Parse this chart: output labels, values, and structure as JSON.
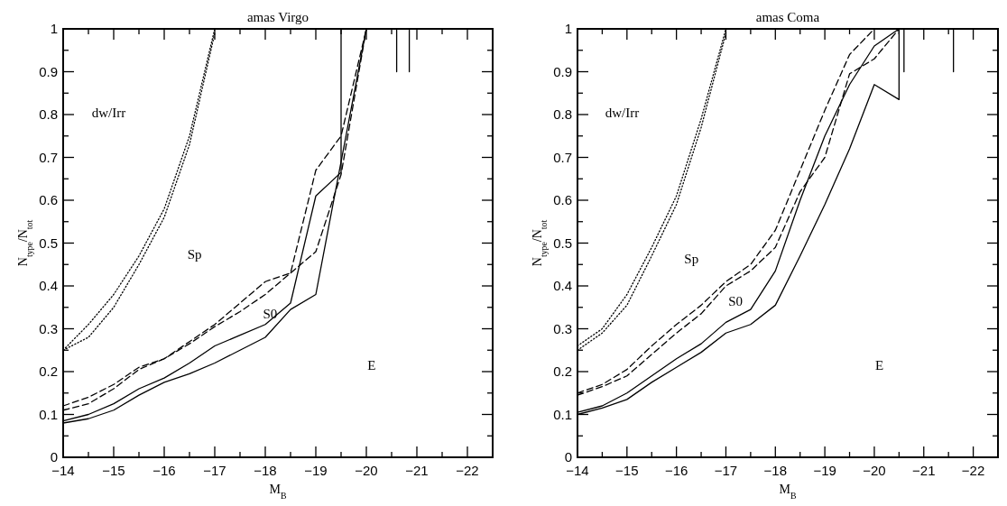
{
  "chart_data": [
    {
      "type": "line",
      "title": "amas Virgo",
      "xlabel": "M$_{B}$",
      "ylabel": "N$_{type}$/N$_{tot}$",
      "xlim": [
        -14,
        -22.5
      ],
      "ylim": [
        0,
        1
      ],
      "xticks": [
        {
          "value": -14,
          "label": "−14"
        },
        {
          "value": -14.5,
          "label": null
        },
        {
          "value": -15,
          "label": "−15"
        },
        {
          "value": -15.5,
          "label": null
        },
        {
          "value": -16,
          "label": "−16"
        },
        {
          "value": -16.5,
          "label": null
        },
        {
          "value": -17,
          "label": "−17"
        },
        {
          "value": -17.5,
          "label": null
        },
        {
          "value": -18,
          "label": "−18"
        },
        {
          "value": -18.5,
          "label": null
        },
        {
          "value": -19,
          "label": "−19"
        },
        {
          "value": -19.5,
          "label": null
        },
        {
          "value": -20,
          "label": "−20"
        },
        {
          "value": -20.5,
          "label": null
        },
        {
          "value": -21,
          "label": "−21"
        },
        {
          "value": -21.5,
          "label": null
        },
        {
          "value": -22,
          "label": "−22"
        }
      ],
      "yticks": [
        0,
        {
          "value": 0.05,
          "label": null
        },
        0.1,
        {
          "value": 0.15,
          "label": null
        },
        0.2,
        {
          "value": 0.25,
          "label": null
        },
        0.3,
        {
          "value": 0.35,
          "label": null
        },
        0.4,
        {
          "value": 0.45,
          "label": null
        },
        0.5,
        {
          "value": 0.55,
          "label": null
        },
        0.6,
        {
          "value": 0.65,
          "label": null
        },
        0.7,
        {
          "value": 0.75,
          "label": null
        },
        0.8,
        {
          "value": 0.85,
          "label": null
        },
        0.9,
        {
          "value": 0.95,
          "label": null
        },
        1
      ],
      "grid": false,
      "marker": "none",
      "series": [
        {
          "color": "#000000",
          "line_style": "dotted",
          "x": [
            -14,
            -14.5,
            -15,
            -15.5,
            -16,
            -16.5,
            -17
          ],
          "values": [
            0.25,
            0.31,
            0.38,
            0.47,
            0.58,
            0.75,
            1.0
          ]
        },
        {
          "color": "#000000",
          "line_style": "dotted",
          "x": [
            -14,
            -14.5,
            -15,
            -15.5,
            -16,
            -16.5,
            -17
          ],
          "values": [
            0.25,
            0.28,
            0.35,
            0.45,
            0.56,
            0.73,
            0.99
          ]
        },
        {
          "color": "#000000",
          "line_style": "dashed",
          "x": [
            -14,
            -14.5,
            -15,
            -15.5,
            -16,
            -16.5,
            -17,
            -17.5,
            -18,
            -18.5,
            -19,
            -19.5,
            -20
          ],
          "values": [
            0.12,
            0.14,
            0.17,
            0.21,
            0.23,
            0.27,
            0.31,
            0.36,
            0.41,
            0.43,
            0.67,
            0.75,
            1.0
          ]
        },
        {
          "color": "#000000",
          "line_style": "dashed",
          "x": [
            -14,
            -14.5,
            -15,
            -15.5,
            -16,
            -16.5,
            -17,
            -17.5,
            -18,
            -18.5,
            -19,
            -19.5,
            -20
          ],
          "values": [
            0.11,
            0.125,
            0.16,
            0.205,
            0.23,
            0.265,
            0.305,
            0.34,
            0.38,
            0.43,
            0.48,
            0.66,
            1.0
          ]
        },
        {
          "color": "#000000",
          "line_style": "solid",
          "x": [
            -14,
            -14.5,
            -15,
            -15.5,
            -16,
            -16.5,
            -17,
            -17.5,
            -18,
            -18.5,
            -19,
            -19.5,
            -19.5
          ],
          "values": [
            0.085,
            0.1,
            0.125,
            0.16,
            0.185,
            0.22,
            0.26,
            0.285,
            0.31,
            0.36,
            0.61,
            0.665,
            1.0
          ]
        },
        {
          "color": "#000000",
          "line_style": "solid",
          "x": [
            -14,
            -14.5,
            -15,
            -15.5,
            -16,
            -16.5,
            -17,
            -17.5,
            -18,
            -18.5,
            -19,
            -20
          ],
          "values": [
            0.08,
            0.09,
            0.11,
            0.145,
            0.175,
            0.195,
            0.22,
            0.25,
            0.28,
            0.345,
            0.38,
            1.0
          ]
        },
        {
          "color": "#000000",
          "line_style": "solid",
          "x": [
            -20.6,
            -20.6
          ],
          "values": [
            0.9,
            1.0
          ]
        },
        {
          "color": "#000000",
          "line_style": "solid",
          "x": [
            -20.85,
            -20.85
          ],
          "values": [
            0.9,
            1.0
          ]
        }
      ],
      "annotations": [
        "dw/Irr",
        "Sp",
        "S0",
        "E"
      ]
    },
    {
      "type": "line",
      "title": "amas Coma",
      "xlabel": "M$_{B}$",
      "ylabel": "N$_{type}$/N$_{tot}$",
      "xlim": [
        -14,
        -22.5
      ],
      "ylim": [
        0,
        1
      ],
      "xticks": [
        {
          "value": -14,
          "label": "−14"
        },
        {
          "value": -14.5,
          "label": null
        },
        {
          "value": -15,
          "label": "−15"
        },
        {
          "value": -15.5,
          "label": null
        },
        {
          "value": -16,
          "label": "−16"
        },
        {
          "value": -16.5,
          "label": null
        },
        {
          "value": -17,
          "label": "−17"
        },
        {
          "value": -17.5,
          "label": null
        },
        {
          "value": -18,
          "label": "−18"
        },
        {
          "value": -18.5,
          "label": null
        },
        {
          "value": -19,
          "label": "−19"
        },
        {
          "value": -19.5,
          "label": null
        },
        {
          "value": -20,
          "label": "−20"
        },
        {
          "value": -20.5,
          "label": null
        },
        {
          "value": -21,
          "label": "−21"
        },
        {
          "value": -21.5,
          "label": null
        },
        {
          "value": -22,
          "label": "−22"
        }
      ],
      "yticks": [
        0,
        {
          "value": 0.05,
          "label": null
        },
        0.1,
        {
          "value": 0.15,
          "label": null
        },
        0.2,
        {
          "value": 0.25,
          "label": null
        },
        0.3,
        {
          "value": 0.35,
          "label": null
        },
        0.4,
        {
          "value": 0.45,
          "label": null
        },
        0.5,
        {
          "value": 0.55,
          "label": null
        },
        0.6,
        {
          "value": 0.65,
          "label": null
        },
        0.7,
        {
          "value": 0.75,
          "label": null
        },
        0.8,
        {
          "value": 0.85,
          "label": null
        },
        0.9,
        {
          "value": 0.95,
          "label": null
        },
        1
      ],
      "grid": false,
      "marker": "none",
      "series": [
        {
          "color": "#000000",
          "line_style": "dotted",
          "x": [
            -14,
            -14.5,
            -15,
            -15.5,
            -16,
            -16.5,
            -17
          ],
          "values": [
            0.26,
            0.3,
            0.38,
            0.49,
            0.61,
            0.79,
            1.0
          ]
        },
        {
          "color": "#000000",
          "line_style": "dotted",
          "x": [
            -14,
            -14.5,
            -15,
            -15.5,
            -16,
            -16.5,
            -17
          ],
          "values": [
            0.25,
            0.29,
            0.355,
            0.47,
            0.59,
            0.77,
            0.99
          ]
        },
        {
          "color": "#000000",
          "line_style": "dashed",
          "x": [
            -14,
            -14.5,
            -15,
            -15.5,
            -16,
            -16.5,
            -17,
            -17.5,
            -18,
            -18.5,
            -19,
            -19.5,
            -20
          ],
          "values": [
            0.15,
            0.17,
            0.205,
            0.26,
            0.31,
            0.355,
            0.41,
            0.45,
            0.53,
            0.67,
            0.81,
            0.94,
            1.0
          ]
        },
        {
          "color": "#000000",
          "line_style": "dashed",
          "x": [
            -14,
            -14.5,
            -15,
            -15.5,
            -16,
            -16.5,
            -17,
            -17.5,
            -18,
            -18.5,
            -19,
            -19.5,
            -20,
            -20.5
          ],
          "values": [
            0.145,
            0.165,
            0.19,
            0.24,
            0.29,
            0.335,
            0.4,
            0.435,
            0.49,
            0.62,
            0.7,
            0.895,
            0.93,
            1.0
          ]
        },
        {
          "color": "#000000",
          "line_style": "solid",
          "x": [
            -14,
            -14.5,
            -15,
            -15.5,
            -16,
            -16.5,
            -17,
            -17.5,
            -18,
            -18.5,
            -19,
            -19.5,
            -20,
            -20.5
          ],
          "values": [
            0.105,
            0.12,
            0.15,
            0.19,
            0.23,
            0.265,
            0.315,
            0.345,
            0.435,
            0.6,
            0.75,
            0.87,
            0.96,
            1.0
          ]
        },
        {
          "color": "#000000",
          "line_style": "solid",
          "x": [
            -14,
            -14.5,
            -15,
            -15.5,
            -16,
            -16.5,
            -17,
            -17.5,
            -18,
            -18.5,
            -19,
            -19.5,
            -20,
            -20.5,
            -20.5
          ],
          "values": [
            0.1,
            0.115,
            0.135,
            0.175,
            0.21,
            0.245,
            0.29,
            0.31,
            0.355,
            0.47,
            0.59,
            0.72,
            0.87,
            0.835,
            1.0
          ]
        },
        {
          "color": "#000000",
          "line_style": "solid",
          "x": [
            -20.6,
            -20.6
          ],
          "values": [
            0.9,
            1.0
          ]
        },
        {
          "color": "#000000",
          "line_style": "solid",
          "x": [
            -21.6,
            -21.6
          ],
          "values": [
            0.9,
            1.0
          ]
        }
      ],
      "annotations": [
        "dw/Irr",
        "Sp",
        "S0",
        "E"
      ]
    }
  ]
}
